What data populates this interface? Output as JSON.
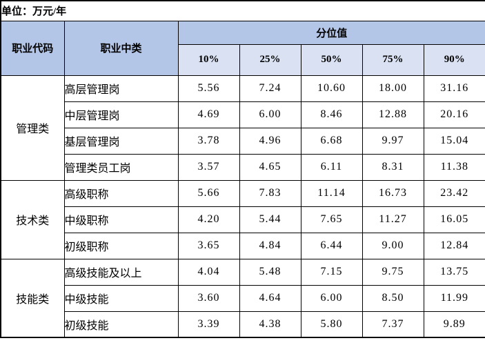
{
  "unit_label": "单位：万元/年",
  "table": {
    "col_headers": {
      "occupation_code": "职业代码",
      "occupation_category": "职业中类",
      "percentile_group": "分位值",
      "percentiles": [
        "10%",
        "25%",
        "50%",
        "75%",
        "90%"
      ]
    },
    "groups": [
      {
        "name": "管理类",
        "rows": [
          {
            "label": "高层管理岗",
            "values": [
              "5.56",
              "7.24",
              "10.60",
              "18.00",
              "31.16"
            ]
          },
          {
            "label": "中层管理岗",
            "values": [
              "4.69",
              "6.00",
              "8.46",
              "12.88",
              "20.16"
            ]
          },
          {
            "label": "基层管理岗",
            "values": [
              "3.78",
              "4.96",
              "6.68",
              "9.97",
              "15.04"
            ]
          },
          {
            "label": "管理类员工岗",
            "values": [
              "3.57",
              "4.65",
              "6.11",
              "8.31",
              "11.38"
            ]
          }
        ]
      },
      {
        "name": "技术类",
        "rows": [
          {
            "label": "高级职称",
            "values": [
              "5.66",
              "7.83",
              "11.14",
              "16.73",
              "23.42"
            ]
          },
          {
            "label": "中级职称",
            "values": [
              "4.20",
              "5.44",
              "7.65",
              "11.27",
              "16.05"
            ]
          },
          {
            "label": "初级职称",
            "values": [
              "3.65",
              "4.84",
              "6.44",
              "9.00",
              "12.84"
            ]
          }
        ]
      },
      {
        "name": "技能类",
        "rows": [
          {
            "label": "高级技能及以上",
            "values": [
              "4.04",
              "5.48",
              "7.15",
              "9.75",
              "13.75"
            ]
          },
          {
            "label": "中级技能",
            "values": [
              "3.60",
              "4.64",
              "6.00",
              "8.50",
              "11.99"
            ]
          },
          {
            "label": "初级技能",
            "values": [
              "3.39",
              "4.38",
              "5.80",
              "7.37",
              "9.89"
            ]
          }
        ]
      }
    ]
  },
  "colors": {
    "header_bg": "#b4c6e7",
    "subheader_bg": "#d9e1f2",
    "border": "#000000",
    "text": "#000000",
    "background": "#ffffff"
  }
}
